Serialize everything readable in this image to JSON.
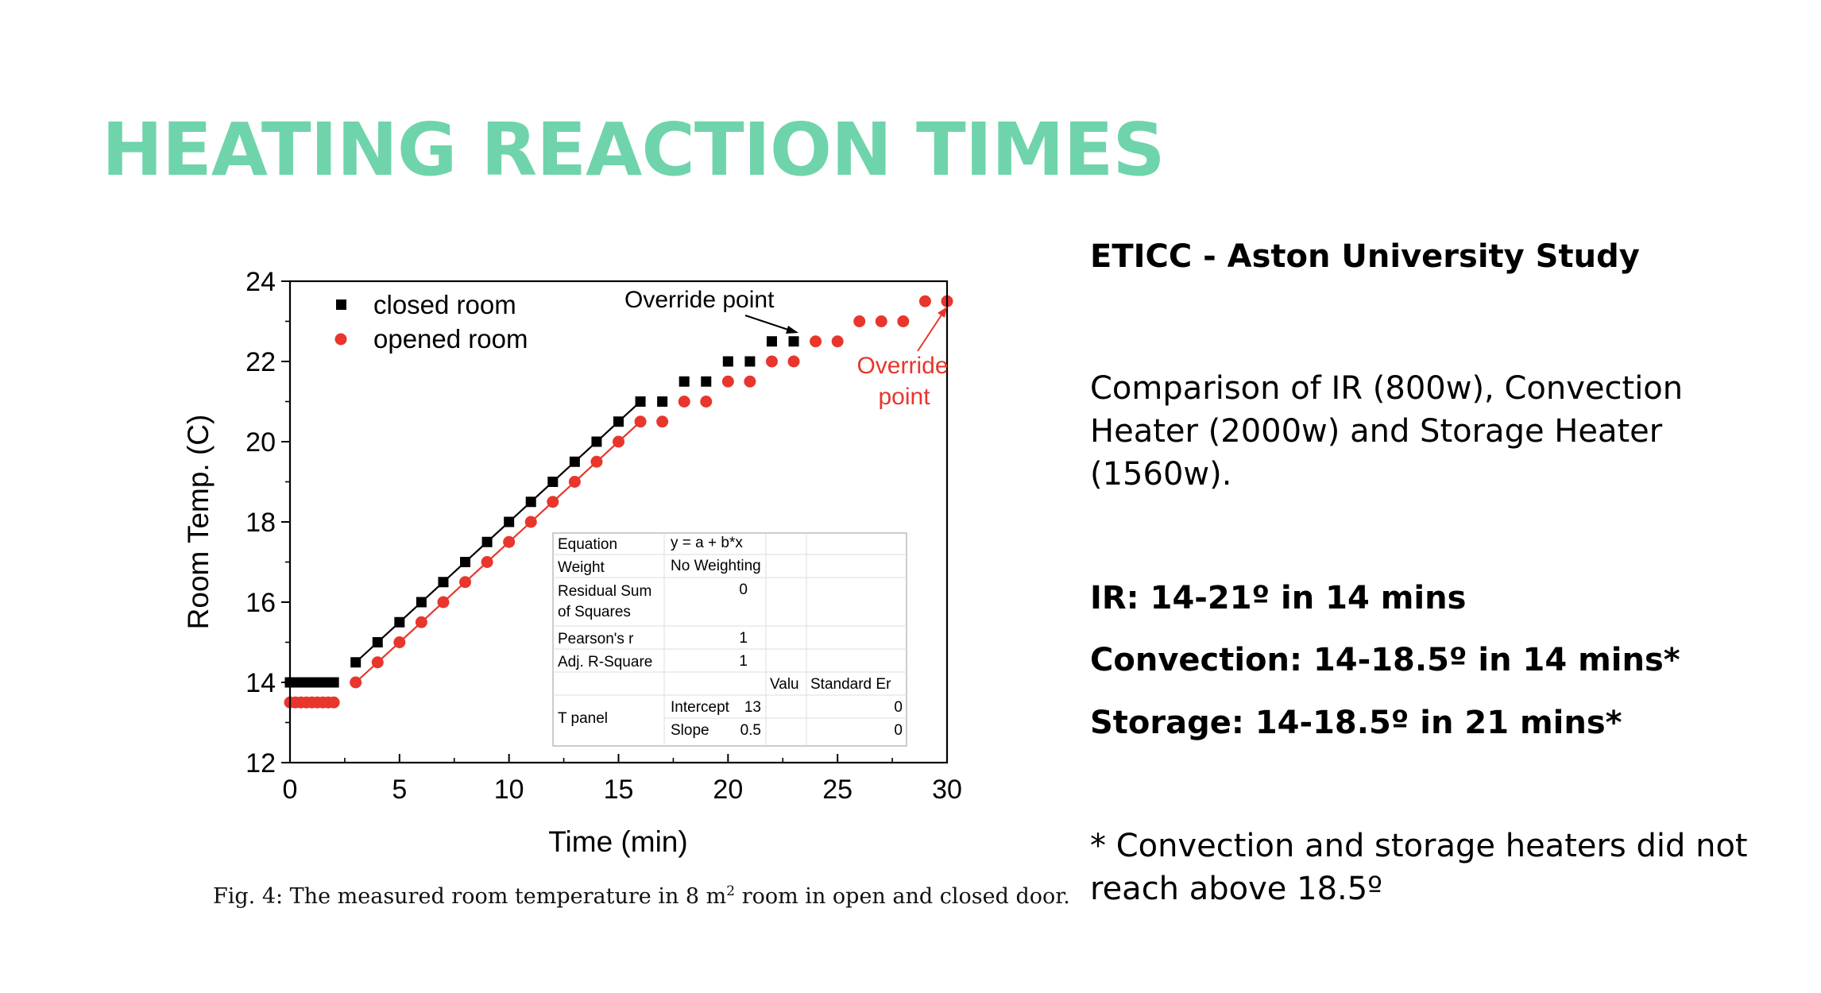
{
  "slide": {
    "title": "HEATING REACTION TIMES"
  },
  "figure": {
    "caption_before": "Fig. 4: The measured room temperature in 8 m",
    "caption_sup": "2",
    "caption_after": " room in open and closed door."
  },
  "chart_data": {
    "type": "scatter",
    "xlabel": "Time (min)",
    "ylabel": "Room Temp. (C)",
    "xlim": [
      0,
      30
    ],
    "ylim": [
      12,
      24
    ],
    "xticks": [
      0,
      5,
      10,
      15,
      20,
      25,
      30
    ],
    "yticks": [
      12,
      14,
      16,
      18,
      20,
      22,
      24
    ],
    "grid": false,
    "legend_position": "top-left",
    "series": [
      {
        "name": "closed room",
        "marker": "square",
        "color": "#000000",
        "points": [
          [
            0,
            14
          ],
          [
            0.25,
            14
          ],
          [
            0.5,
            14
          ],
          [
            0.75,
            14
          ],
          [
            1,
            14
          ],
          [
            1.25,
            14
          ],
          [
            1.5,
            14
          ],
          [
            1.75,
            14
          ],
          [
            2,
            14
          ],
          [
            3,
            14.5
          ],
          [
            4,
            15
          ],
          [
            5,
            15.5
          ],
          [
            6,
            16
          ],
          [
            7,
            16.5
          ],
          [
            8,
            17
          ],
          [
            9,
            17.5
          ],
          [
            10,
            18
          ],
          [
            11,
            18.5
          ],
          [
            12,
            19
          ],
          [
            13,
            19.5
          ],
          [
            14,
            20
          ],
          [
            15,
            20.5
          ],
          [
            16,
            21
          ],
          [
            17,
            21
          ],
          [
            18,
            21.5
          ],
          [
            19,
            21.5
          ],
          [
            20,
            22
          ],
          [
            21,
            22
          ],
          [
            22,
            22.5
          ],
          [
            23,
            22.5
          ]
        ],
        "fit_line": [
          [
            3,
            14.5
          ],
          [
            16.2,
            21.1
          ]
        ]
      },
      {
        "name": "opened room",
        "marker": "circle",
        "color": "#e8362d",
        "points": [
          [
            0,
            13.5
          ],
          [
            0.25,
            13.5
          ],
          [
            0.5,
            13.5
          ],
          [
            0.75,
            13.5
          ],
          [
            1,
            13.5
          ],
          [
            1.25,
            13.5
          ],
          [
            1.5,
            13.5
          ],
          [
            1.75,
            13.5
          ],
          [
            2,
            13.5
          ],
          [
            3,
            14
          ],
          [
            4,
            14.5
          ],
          [
            5,
            15
          ],
          [
            6,
            15.5
          ],
          [
            7,
            16
          ],
          [
            8,
            16.5
          ],
          [
            9,
            17
          ],
          [
            10,
            17.5
          ],
          [
            11,
            18
          ],
          [
            12,
            18.5
          ],
          [
            13,
            19
          ],
          [
            14,
            19.5
          ],
          [
            15,
            20
          ],
          [
            16,
            20.5
          ],
          [
            17,
            20.5
          ],
          [
            18,
            21
          ],
          [
            19,
            21
          ],
          [
            20,
            21.5
          ],
          [
            21,
            21.5
          ],
          [
            22,
            22
          ],
          [
            23,
            22
          ],
          [
            24,
            22.5
          ],
          [
            25,
            22.5
          ],
          [
            26,
            23
          ],
          [
            27,
            23
          ],
          [
            28,
            23
          ],
          [
            29,
            23.5
          ],
          [
            30,
            23.5
          ]
        ],
        "fit_line": [
          [
            3,
            14
          ],
          [
            16.2,
            20.6
          ]
        ]
      }
    ],
    "annotations": [
      {
        "text": "Override point",
        "color": "#000000",
        "target": [
          23,
          22.5
        ]
      },
      {
        "text_lines": [
          "Override",
          "point"
        ],
        "color": "#e8362d",
        "target": [
          30,
          23.5
        ]
      }
    ],
    "fit_table": {
      "rows": [
        {
          "label": "Equation",
          "value": "y = a + b*x"
        },
        {
          "label": "Weight",
          "value": "No Weighting"
        },
        {
          "label_lines": [
            "Residual Sum",
            "of Squares"
          ],
          "value": "0"
        },
        {
          "label": "Pearson's r",
          "value": "1"
        },
        {
          "label": "Adj. R-Square",
          "value": "1"
        }
      ],
      "header": [
        "Valu",
        "Standard Er"
      ],
      "group": "T panel",
      "params": [
        {
          "name": "Intercept",
          "value": "13",
          "error": "0"
        },
        {
          "name": "Slope",
          "value": "0.5",
          "error": "0"
        }
      ]
    }
  },
  "side_text": {
    "study": "ETICC - Aston University Study",
    "comparison": "Comparison of IR (800w), Convection Heater (2000w) and Storage Heater (1560w).",
    "ir": "IR: 14-21º in 14 mins",
    "convection": "Convection: 14-18.5º in 14 mins*",
    "storage": "Storage: 14-18.5º in 21 mins*",
    "note": "* Convection and storage heaters did not reach above 18.5º"
  }
}
